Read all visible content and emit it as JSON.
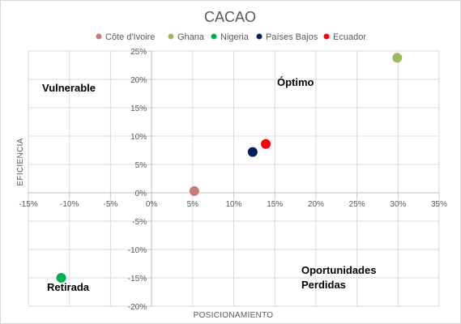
{
  "chart_data": {
    "type": "scatter",
    "title": "CACAO",
    "xlabel": "POSICIONAMIENTO",
    "ylabel": "EFICIENCIA",
    "xlim": [
      -0.15,
      0.35
    ],
    "ylim": [
      -0.2,
      0.25
    ],
    "x_ticks": [
      -0.15,
      -0.1,
      -0.05,
      0,
      0.05,
      0.1,
      0.15,
      0.2,
      0.25,
      0.3,
      0.35
    ],
    "y_ticks": [
      -0.2,
      -0.15,
      -0.1,
      -0.05,
      0,
      0.05,
      0.1,
      0.15,
      0.2,
      0.25
    ],
    "x_tick_labels": [
      "-15%",
      "-10%",
      "-5%",
      "0%",
      "5%",
      "10%",
      "15%",
      "20%",
      "25%",
      "30%",
      "35%"
    ],
    "y_tick_labels": [
      "-20%",
      "-15%",
      "-10%",
      "-5%",
      "0%",
      "5%",
      "10%",
      "15%",
      "20%",
      "25%"
    ],
    "grid": true,
    "legend_position": "top",
    "series": [
      {
        "name": "Côte d'Ivoire",
        "color": "#c9797a",
        "x": 0.052,
        "y": 0.003
      },
      {
        "name": "Ghana",
        "color": "#9bbb59",
        "x": 0.299,
        "y": 0.238
      },
      {
        "name": "Nigeria",
        "color": "#00b050",
        "x": -0.11,
        "y": -0.15
      },
      {
        "name": "Países Bajos",
        "color": "#002060",
        "x": 0.123,
        "y": 0.072
      },
      {
        "name": "Ecuador",
        "color": "#ff0000",
        "x": 0.139,
        "y": 0.086
      }
    ],
    "annotations": {
      "top_left": "Vulnerable",
      "top_right": "Óptimo",
      "bottom_left": "Retirada",
      "bottom_right_line1": "Oportunidades",
      "bottom_right_line2": "Perdidas"
    }
  }
}
